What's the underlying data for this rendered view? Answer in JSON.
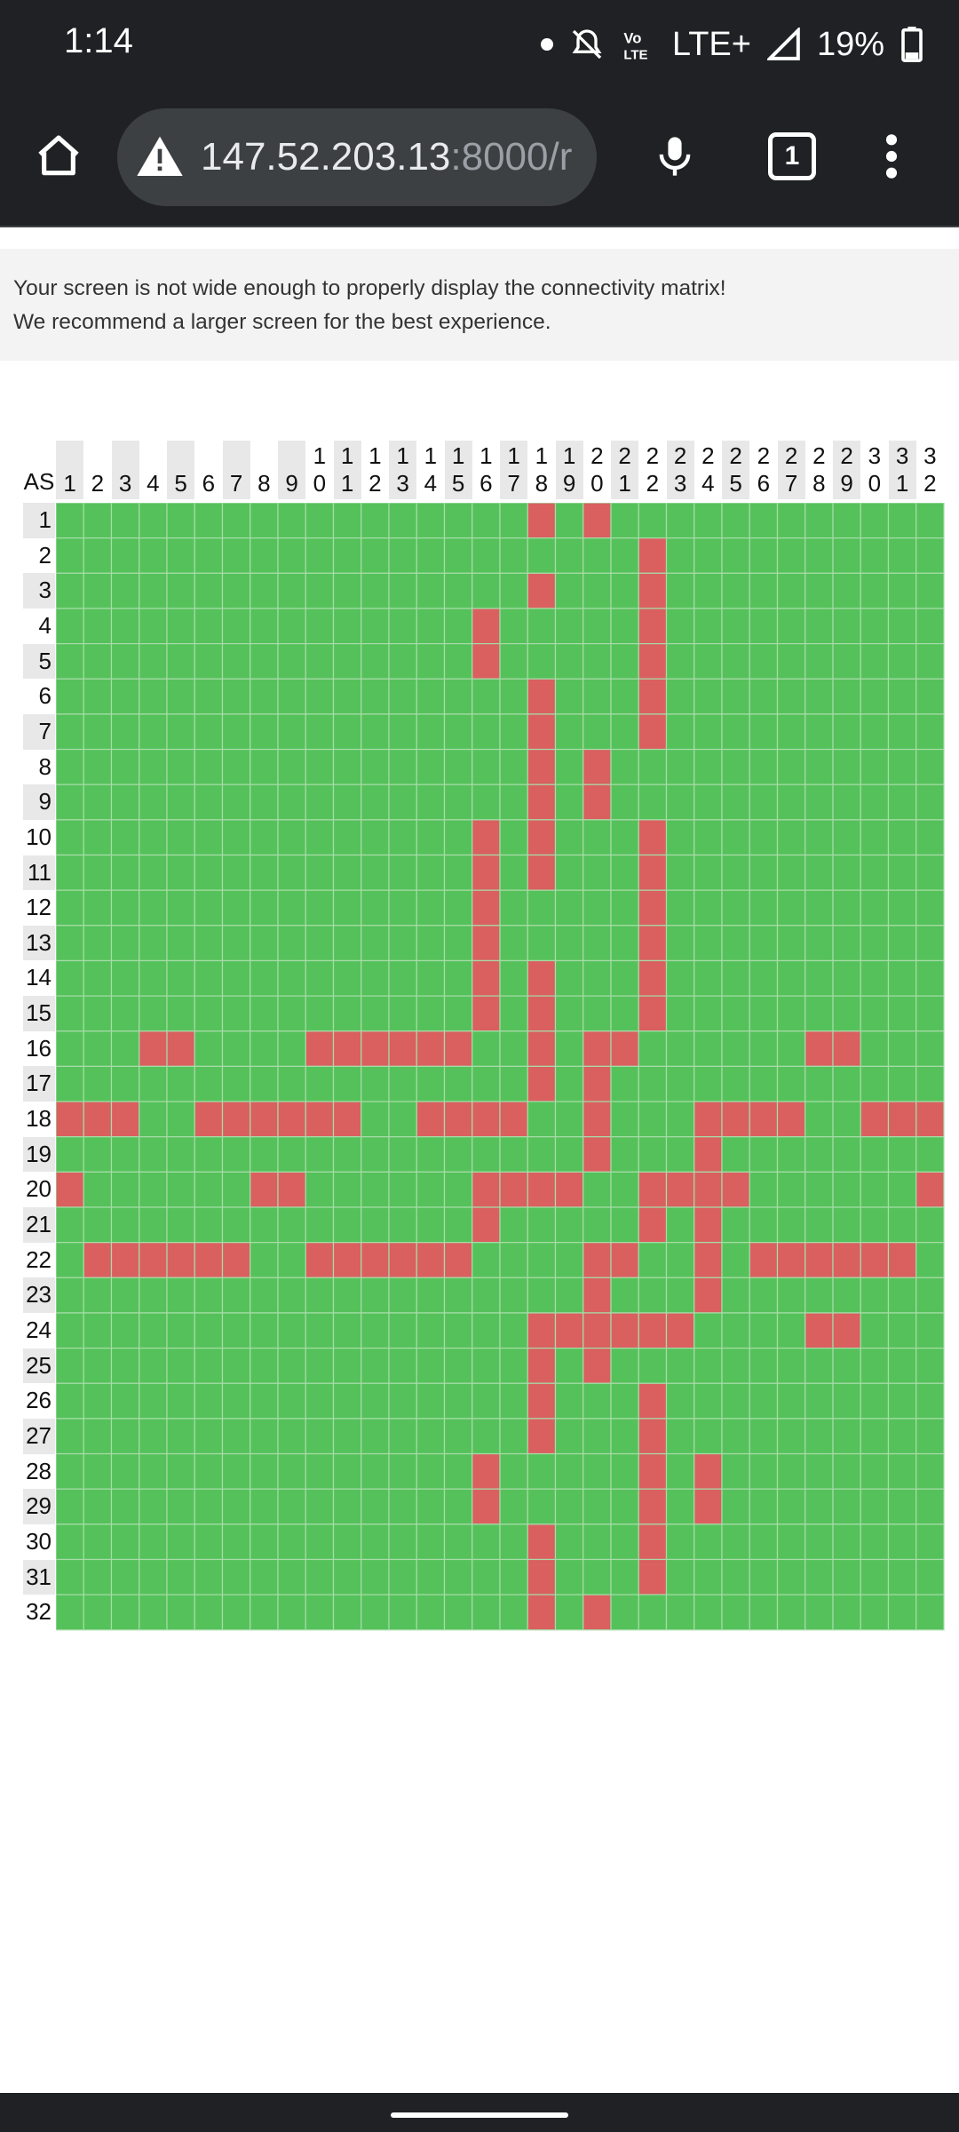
{
  "status_bar": {
    "time": "1:14",
    "network": "LTE+",
    "battery": "19%",
    "icons": [
      "notification-dot",
      "muted-bell-icon",
      "volte-icon",
      "signal-icon",
      "battery-icon"
    ]
  },
  "browser": {
    "url_main": "147.52.203.13",
    "url_rest": ":8000/r",
    "tab_count": "1",
    "icons": [
      "home-icon",
      "not-secure-warning-icon",
      "mic-icon",
      "tabs-icon",
      "more-menu-icon"
    ]
  },
  "notice": {
    "line1": "Your screen is not wide enough to properly display the connectivity matrix!",
    "line2": "We recommend a larger screen for the best experience."
  },
  "matrix": {
    "corner_label": "AS",
    "ids": [
      1,
      2,
      3,
      4,
      5,
      6,
      7,
      8,
      9,
      10,
      11,
      12,
      13,
      14,
      15,
      16,
      17,
      18,
      19,
      20,
      21,
      22,
      23,
      24,
      25,
      26,
      27,
      28,
      29,
      30,
      31,
      32
    ],
    "legend_colors": {
      "connected": "#55c15a",
      "disconnected": "#d9605f"
    },
    "red_cells": {
      "1": [
        18,
        20
      ],
      "2": [
        22
      ],
      "3": [
        18,
        22
      ],
      "4": [
        16,
        22
      ],
      "5": [
        16,
        22
      ],
      "6": [
        18,
        22
      ],
      "7": [
        18,
        22
      ],
      "8": [
        18,
        20
      ],
      "9": [
        18,
        20
      ],
      "10": [
        16,
        18,
        22
      ],
      "11": [
        16,
        18,
        22
      ],
      "12": [
        16,
        22
      ],
      "13": [
        16,
        22
      ],
      "14": [
        16,
        18,
        22
      ],
      "15": [
        16,
        18,
        22
      ],
      "16": [
        4,
        5,
        10,
        11,
        12,
        13,
        14,
        15,
        18,
        20,
        21,
        28,
        29
      ],
      "17": [
        18,
        20
      ],
      "18": [
        1,
        2,
        3,
        6,
        7,
        8,
        9,
        10,
        11,
        14,
        15,
        16,
        17,
        20,
        24,
        25,
        26,
        27,
        30,
        31,
        32
      ],
      "19": [
        20,
        24
      ],
      "20": [
        1,
        8,
        9,
        16,
        17,
        18,
        19,
        22,
        23,
        24,
        25,
        32
      ],
      "21": [
        16,
        22,
        24
      ],
      "22": [
        2,
        3,
        4,
        5,
        6,
        7,
        10,
        11,
        12,
        13,
        14,
        15,
        20,
        21,
        24,
        26,
        27,
        28,
        29,
        30,
        31
      ],
      "23": [
        20,
        24
      ],
      "24": [
        18,
        19,
        20,
        21,
        22,
        23,
        28,
        29
      ],
      "25": [
        18,
        20
      ],
      "26": [
        18,
        22
      ],
      "27": [
        18,
        22
      ],
      "28": [
        16,
        22,
        24
      ],
      "29": [
        16,
        22,
        24
      ],
      "30": [
        18,
        22
      ],
      "31": [
        18,
        22
      ],
      "32": [
        18,
        20
      ]
    }
  }
}
